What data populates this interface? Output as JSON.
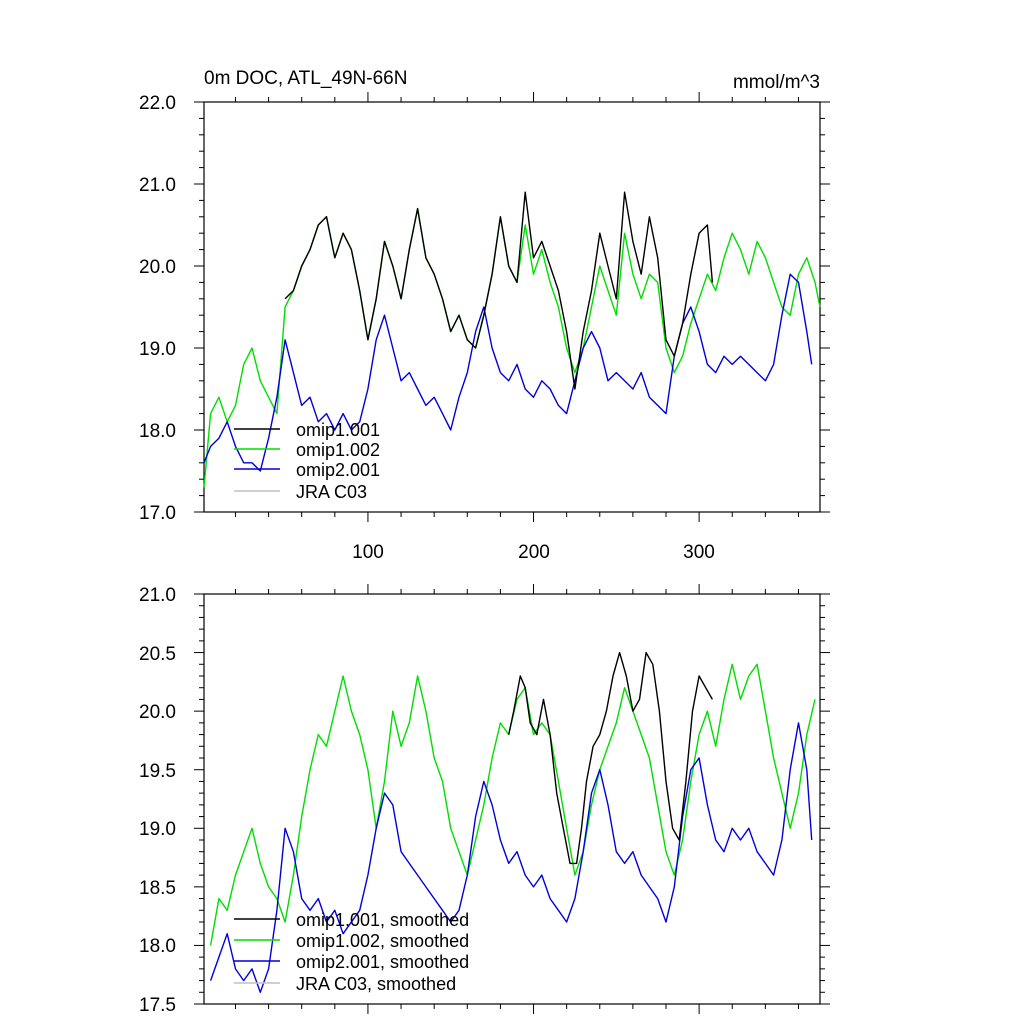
{
  "chart_data": [
    {
      "type": "line",
      "title": "0m DOC, ATL_49N-66N",
      "units": "mmol/m^3",
      "xlabel": "",
      "ylabel": "",
      "xlim": [
        1,
        373
      ],
      "ylim": [
        17.0,
        22.0
      ],
      "x_ticks": [
        100,
        200,
        300
      ],
      "x_tick_labels": [
        "100",
        "200",
        "300"
      ],
      "y_ticks": [
        17,
        18,
        19,
        20,
        21,
        22
      ],
      "y_tick_labels": [
        "17.0",
        "18.0",
        "19.0",
        "20.0",
        "21.0",
        "22.0"
      ],
      "grid": false,
      "legend_position": "lower-left",
      "legend": [
        "omip1.001",
        "omip1.002",
        "omip2.001",
        "JRA C03"
      ],
      "series": [
        {
          "name": "omip1.001",
          "color": "#000000",
          "x": [
            50,
            55,
            60,
            65,
            70,
            75,
            80,
            85,
            90,
            95,
            100,
            105,
            110,
            115,
            120,
            125,
            130,
            135,
            140,
            145,
            150,
            155,
            160,
            165,
            170,
            175,
            180,
            185,
            190,
            195,
            200,
            205,
            210,
            215,
            220,
            225,
            230,
            235,
            240,
            245,
            250,
            255,
            260,
            265,
            270,
            275,
            280,
            285,
            290,
            295,
            300,
            305,
            308
          ],
          "values": [
            19.6,
            19.7,
            20.0,
            20.2,
            20.5,
            20.6,
            20.1,
            20.4,
            20.2,
            19.7,
            19.1,
            19.6,
            20.3,
            20.0,
            19.6,
            20.2,
            20.7,
            20.1,
            19.9,
            19.6,
            19.2,
            19.4,
            19.1,
            19.0,
            19.4,
            19.9,
            20.6,
            20.0,
            19.8,
            20.9,
            20.1,
            20.3,
            20.0,
            19.7,
            19.2,
            18.5,
            19.2,
            19.7,
            20.4,
            20.0,
            19.6,
            20.9,
            20.3,
            19.9,
            20.6,
            20.1,
            19.1,
            18.9,
            19.3,
            19.9,
            20.4,
            20.5,
            19.8
          ]
        },
        {
          "name": "omip1.002",
          "color": "#00dd00",
          "x": [
            1,
            5,
            10,
            15,
            20,
            25,
            30,
            35,
            40,
            45,
            50,
            55,
            60,
            65,
            70,
            75,
            80,
            85,
            90,
            95,
            100,
            105,
            110,
            115,
            120,
            125,
            130,
            135,
            140,
            145,
            150,
            155,
            160,
            165,
            170,
            175,
            180,
            185,
            190,
            195,
            200,
            205,
            210,
            215,
            220,
            225,
            230,
            235,
            240,
            245,
            250,
            255,
            260,
            265,
            270,
            275,
            280,
            285,
            290,
            295,
            300,
            305,
            310,
            315,
            320,
            325,
            330,
            335,
            340,
            345,
            350,
            355,
            360,
            365,
            370,
            373
          ],
          "values": [
            17.3,
            18.2,
            18.4,
            18.1,
            18.3,
            18.8,
            19.0,
            18.6,
            18.4,
            18.2,
            19.5,
            19.7,
            20.0,
            20.2,
            20.5,
            20.6,
            20.1,
            20.4,
            20.2,
            19.7,
            19.1,
            19.6,
            20.3,
            20.0,
            19.6,
            20.2,
            20.7,
            20.1,
            19.9,
            19.6,
            19.2,
            19.4,
            19.1,
            19.0,
            19.4,
            19.9,
            20.6,
            20.0,
            19.8,
            20.5,
            19.9,
            20.2,
            19.8,
            19.5,
            19.0,
            18.7,
            19.0,
            19.5,
            20.0,
            19.7,
            19.4,
            20.4,
            19.9,
            19.6,
            19.9,
            19.8,
            19.0,
            18.7,
            18.9,
            19.3,
            19.6,
            19.9,
            19.7,
            20.1,
            20.4,
            20.2,
            19.9,
            20.3,
            20.1,
            19.8,
            19.5,
            19.4,
            19.9,
            20.1,
            19.8,
            19.5
          ]
        },
        {
          "name": "omip2.001",
          "color": "#0000dd",
          "x": [
            1,
            5,
            10,
            15,
            20,
            25,
            30,
            35,
            40,
            45,
            50,
            55,
            60,
            65,
            70,
            75,
            80,
            85,
            90,
            95,
            100,
            105,
            110,
            115,
            120,
            125,
            130,
            135,
            140,
            145,
            150,
            155,
            160,
            165,
            170,
            175,
            180,
            185,
            190,
            195,
            200,
            205,
            210,
            215,
            220,
            225,
            230,
            235,
            240,
            245,
            250,
            255,
            260,
            265,
            270,
            275,
            280,
            285,
            290,
            295,
            300,
            305,
            310,
            315,
            320,
            325,
            330,
            335,
            340,
            345,
            350,
            355,
            360,
            365,
            368
          ],
          "values": [
            17.6,
            17.8,
            17.9,
            18.1,
            17.8,
            17.6,
            17.6,
            17.5,
            17.9,
            18.4,
            19.1,
            18.7,
            18.3,
            18.4,
            18.1,
            18.2,
            18.0,
            18.2,
            18.0,
            18.1,
            18.5,
            19.1,
            19.4,
            19.0,
            18.6,
            18.7,
            18.5,
            18.3,
            18.4,
            18.2,
            18.0,
            18.4,
            18.7,
            19.2,
            19.5,
            19.0,
            18.7,
            18.6,
            18.8,
            18.5,
            18.4,
            18.6,
            18.5,
            18.3,
            18.2,
            18.6,
            19.0,
            19.2,
            19.0,
            18.6,
            18.7,
            18.6,
            18.5,
            18.7,
            18.4,
            18.3,
            18.2,
            18.9,
            19.3,
            19.5,
            19.2,
            18.8,
            18.7,
            18.9,
            18.8,
            18.9,
            18.8,
            18.7,
            18.6,
            18.8,
            19.4,
            19.9,
            19.8,
            19.2,
            18.8
          ]
        },
        {
          "name": "JRA C03",
          "color": "#c0c0c0",
          "x": [],
          "values": []
        }
      ]
    },
    {
      "type": "line",
      "title": "",
      "xlabel": "",
      "ylabel": "",
      "xlim": [
        1,
        373
      ],
      "ylim": [
        17.5,
        21.0
      ],
      "x_ticks": [
        100,
        200,
        300
      ],
      "x_tick_labels": [],
      "y_ticks": [
        17.5,
        18.0,
        18.5,
        19.0,
        19.5,
        20.0,
        20.5,
        21.0
      ],
      "y_tick_labels": [
        "17.5",
        "18.0",
        "18.5",
        "19.0",
        "19.5",
        "20.0",
        "20.5",
        "21.0"
      ],
      "grid": false,
      "legend_position": "lower-left",
      "legend": [
        "omip1.001, smoothed",
        "omip1.002, smoothed",
        "omip2.001, smoothed",
        "JRA C03, smoothed"
      ],
      "series": [
        {
          "name": "omip1.001, smoothed",
          "color": "#000000",
          "x": [
            185,
            188,
            192,
            195,
            198,
            202,
            206,
            210,
            214,
            218,
            222,
            226,
            229,
            232,
            236,
            240,
            244,
            248,
            252,
            256,
            260,
            264,
            268,
            272,
            276,
            280,
            284,
            288,
            292,
            296,
            300,
            304,
            308
          ],
          "values": [
            19.8,
            20.0,
            20.3,
            20.2,
            19.9,
            19.8,
            20.1,
            19.8,
            19.3,
            19.0,
            18.7,
            18.7,
            19.0,
            19.4,
            19.7,
            19.8,
            20.0,
            20.3,
            20.5,
            20.3,
            20.0,
            20.1,
            20.5,
            20.4,
            20.0,
            19.4,
            19.0,
            18.9,
            19.4,
            20.0,
            20.3,
            20.2,
            20.1
          ]
        },
        {
          "name": "omip1.002, smoothed",
          "color": "#00dd00",
          "x": [
            5,
            10,
            15,
            20,
            25,
            30,
            35,
            40,
            45,
            50,
            55,
            60,
            65,
            70,
            75,
            80,
            85,
            90,
            95,
            100,
            105,
            110,
            115,
            120,
            125,
            130,
            135,
            140,
            145,
            150,
            155,
            160,
            165,
            170,
            175,
            180,
            185,
            190,
            195,
            200,
            205,
            210,
            215,
            220,
            225,
            230,
            235,
            240,
            245,
            250,
            255,
            260,
            265,
            270,
            275,
            280,
            285,
            290,
            295,
            300,
            305,
            310,
            315,
            320,
            325,
            330,
            335,
            340,
            345,
            350,
            355,
            360,
            365,
            370
          ],
          "values": [
            18.0,
            18.4,
            18.3,
            18.6,
            18.8,
            19.0,
            18.7,
            18.5,
            18.4,
            18.2,
            18.6,
            19.1,
            19.5,
            19.8,
            19.7,
            20.0,
            20.3,
            20.0,
            19.8,
            19.5,
            19.0,
            19.4,
            20.0,
            19.7,
            19.9,
            20.3,
            20.0,
            19.6,
            19.4,
            19.0,
            18.8,
            18.6,
            18.9,
            19.2,
            19.6,
            19.9,
            19.8,
            20.1,
            20.2,
            19.8,
            19.9,
            19.8,
            19.4,
            19.0,
            18.6,
            18.8,
            19.2,
            19.5,
            19.7,
            19.9,
            20.2,
            20.0,
            19.8,
            19.6,
            19.2,
            18.8,
            18.6,
            18.9,
            19.4,
            19.8,
            20.0,
            19.7,
            20.1,
            20.4,
            20.1,
            20.3,
            20.4,
            20.0,
            19.6,
            19.3,
            19.0,
            19.3,
            19.8,
            20.1
          ]
        },
        {
          "name": "omip2.001, smoothed",
          "color": "#0000dd",
          "x": [
            5,
            10,
            15,
            20,
            25,
            30,
            35,
            40,
            45,
            50,
            55,
            60,
            65,
            70,
            75,
            80,
            85,
            90,
            95,
            100,
            105,
            110,
            115,
            120,
            125,
            130,
            135,
            140,
            145,
            150,
            155,
            160,
            165,
            170,
            175,
            180,
            185,
            190,
            195,
            200,
            205,
            210,
            215,
            220,
            225,
            230,
            235,
            240,
            245,
            250,
            255,
            260,
            265,
            270,
            275,
            280,
            285,
            290,
            295,
            300,
            305,
            310,
            315,
            320,
            325,
            330,
            335,
            340,
            345,
            350,
            355,
            360,
            365,
            368
          ],
          "values": [
            17.7,
            17.9,
            18.1,
            17.8,
            17.7,
            17.8,
            17.6,
            17.8,
            18.3,
            19.0,
            18.8,
            18.4,
            18.3,
            18.4,
            18.2,
            18.3,
            18.1,
            18.2,
            18.3,
            18.6,
            19.0,
            19.3,
            19.2,
            18.8,
            18.7,
            18.6,
            18.5,
            18.4,
            18.3,
            18.2,
            18.3,
            18.6,
            19.1,
            19.4,
            19.2,
            18.9,
            18.7,
            18.8,
            18.6,
            18.5,
            18.6,
            18.4,
            18.3,
            18.2,
            18.4,
            18.8,
            19.3,
            19.5,
            19.2,
            18.8,
            18.7,
            18.8,
            18.6,
            18.5,
            18.4,
            18.2,
            18.5,
            19.1,
            19.5,
            19.6,
            19.2,
            18.9,
            18.8,
            19.0,
            18.9,
            19.0,
            18.8,
            18.7,
            18.6,
            18.9,
            19.5,
            19.9,
            19.5,
            18.9
          ]
        },
        {
          "name": "JRA C03, smoothed",
          "color": "#c0c0c0",
          "x": [],
          "values": []
        }
      ]
    }
  ]
}
